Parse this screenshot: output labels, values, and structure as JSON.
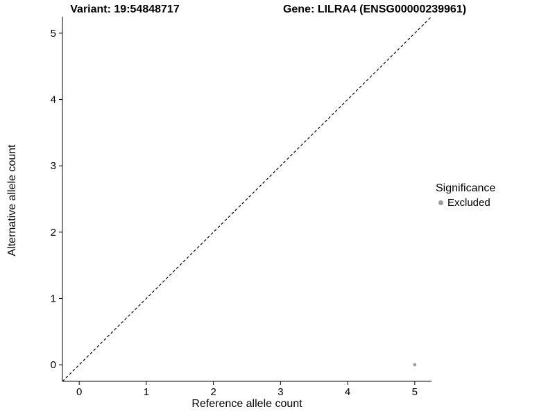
{
  "header": {
    "variant_title": "Variant: 19:54848717",
    "gene_title": "Gene: LILRA4 (ENSG00000239961)"
  },
  "chart_data": {
    "type": "scatter",
    "xlabel": "Reference allele count",
    "ylabel": "Alternative allele count",
    "xlim": [
      -0.25,
      5.25
    ],
    "ylim": [
      -0.25,
      5.25
    ],
    "xticks": [
      0,
      1,
      2,
      3,
      4,
      5
    ],
    "yticks": [
      0,
      1,
      2,
      3,
      4,
      5
    ],
    "grid": false,
    "axis_color": "#000000",
    "reference_line": {
      "kind": "identity",
      "slope": 1,
      "intercept": 0,
      "style": "dashed",
      "color": "#000000"
    },
    "series": [
      {
        "name": "Excluded",
        "color": "#9b9b9b",
        "points": [
          [
            5,
            0
          ]
        ]
      }
    ],
    "legend": {
      "position": "right",
      "title": "Significance",
      "entries": [
        {
          "label": "Excluded",
          "color": "#9b9b9b"
        }
      ]
    }
  }
}
